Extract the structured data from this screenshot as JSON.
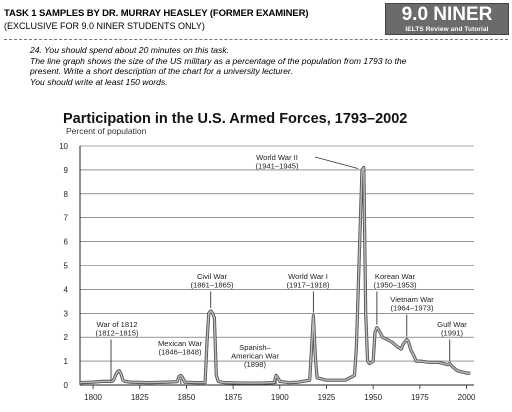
{
  "header": {
    "title": "TASK 1 SAMPLES BY DR. MURRAY HEASLEY (FORMER EXAMINER)",
    "subtitle": "(EXCLUSIVE FOR 9.0 NINER STUDENTS ONLY)"
  },
  "logo": {
    "main": "9.0 NINER",
    "sub": "IELTS Review and Tutorial"
  },
  "task": {
    "line1": "24. You should spend about 20 minutes on this task.",
    "line2": "The line graph shows the size of the US military as a percentage of the population from 1793 to the",
    "line3": "present. Write a short description of the chart for a university lecturer.",
    "line4": "You should write at least 150 words."
  },
  "chart_data": {
    "type": "line",
    "title": "Participation in the U.S. Armed Forces, 1793–2002",
    "ylabel": "Percent of population",
    "xlabel": "",
    "xlim": [
      1793,
      2004
    ],
    "ylim": [
      0,
      10
    ],
    "xticks": [
      1800,
      1825,
      1850,
      1875,
      1900,
      1925,
      1950,
      1975,
      2000
    ],
    "yticks": [
      0,
      1,
      2,
      3,
      4,
      5,
      6,
      7,
      8,
      9,
      10
    ],
    "grid": "horizontal",
    "series": [
      {
        "x": [
          1793,
          1800,
          1805,
          1810,
          1811,
          1812,
          1813,
          1814,
          1815,
          1816,
          1817,
          1820,
          1830,
          1840,
          1845,
          1846,
          1847,
          1848,
          1849,
          1855,
          1860,
          1861,
          1862,
          1863,
          1864,
          1865,
          1866,
          1867,
          1870,
          1880,
          1890,
          1897,
          1898,
          1899,
          1900,
          1905,
          1910,
          1916,
          1917,
          1918,
          1919,
          1920,
          1925,
          1930,
          1935,
          1940,
          1941,
          1943,
          1944,
          1945,
          1946,
          1947,
          1948,
          1950,
          1951,
          1952,
          1953,
          1955,
          1960,
          1963,
          1965,
          1966,
          1968,
          1969,
          1970,
          1972,
          1973,
          1975,
          1980,
          1985,
          1990,
          1991,
          1992,
          1995,
          2000,
          2002
        ],
        "y": [
          0.1,
          0.12,
          0.15,
          0.15,
          0.2,
          0.4,
          0.55,
          0.6,
          0.45,
          0.2,
          0.15,
          0.12,
          0.1,
          0.12,
          0.14,
          0.35,
          0.4,
          0.3,
          0.12,
          0.1,
          0.1,
          1.8,
          3.0,
          3.1,
          3.0,
          2.8,
          0.4,
          0.15,
          0.1,
          0.08,
          0.08,
          0.1,
          0.4,
          0.3,
          0.15,
          0.1,
          0.12,
          0.2,
          1.5,
          2.9,
          1.2,
          0.3,
          0.2,
          0.2,
          0.2,
          0.4,
          1.6,
          6.5,
          9.0,
          9.1,
          3.0,
          1.0,
          0.9,
          1.0,
          2.2,
          2.4,
          2.3,
          2.0,
          1.8,
          1.6,
          1.5,
          1.7,
          1.9,
          1.8,
          1.5,
          1.2,
          1.0,
          1.0,
          0.95,
          0.95,
          0.85,
          0.9,
          0.8,
          0.6,
          0.5,
          0.5
        ]
      }
    ],
    "annotations": [
      {
        "line1": "World War II",
        "line2": "(1941–1945)",
        "year": 1944
      },
      {
        "line1": "Civil War",
        "line2": "(1861–1865)",
        "year": 1863
      },
      {
        "line1": "World War I",
        "line2": "(1917–1918)",
        "year": 1918
      },
      {
        "line1": "Korean War",
        "line2": "(1950–1953)",
        "year": 1952
      },
      {
        "line1": "Vietnam War",
        "line2": "(1964–1973)",
        "year": 1968
      },
      {
        "line1": "War of 1812",
        "line2": "(1812–1815)",
        "year": 1813
      },
      {
        "line1": "Mexican War",
        "line2": "(1846–1848)",
        "year": 1847
      },
      {
        "line1": "Spanish–",
        "line2": "American War",
        "line3": "(1898)",
        "year": 1898
      },
      {
        "line1": "Gulf War",
        "line2": "(1991)",
        "year": 1991
      }
    ]
  }
}
